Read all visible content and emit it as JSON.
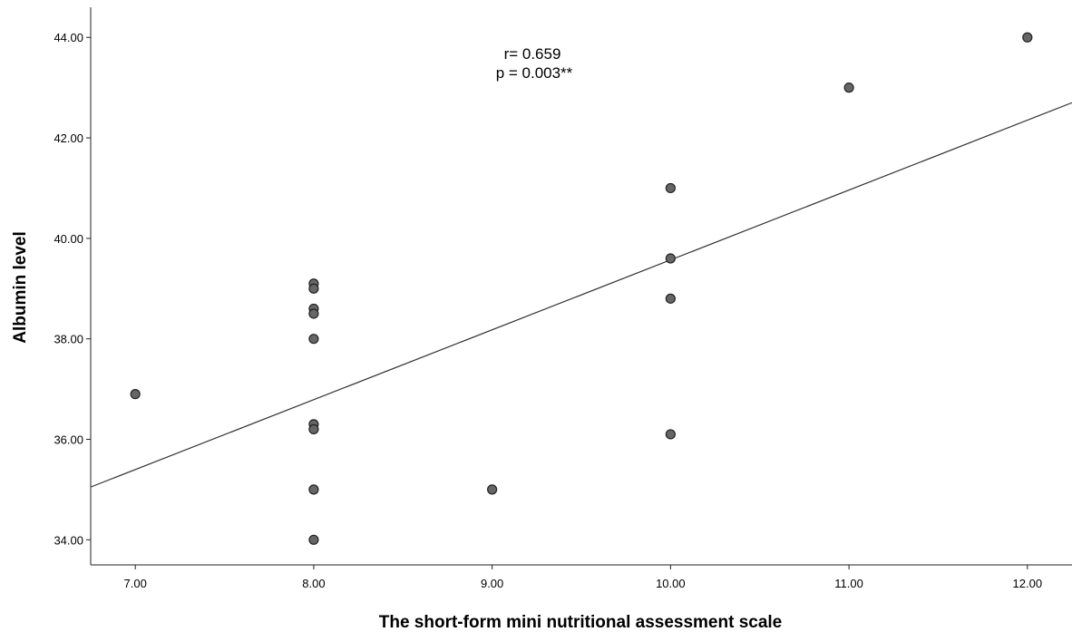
{
  "chart_data": {
    "type": "scatter",
    "title": "",
    "xlabel": "The short-form mini nutritional assessment scale",
    "ylabel": "Albumin level",
    "xlim": [
      6.75,
      12.25
    ],
    "ylim": [
      33.5,
      44.6
    ],
    "x_ticks": [
      7,
      8,
      9,
      10,
      11,
      12
    ],
    "x_tick_labels": [
      "7.00",
      "8.00",
      "9.00",
      "10.00",
      "11.00",
      "12.00"
    ],
    "y_ticks": [
      34,
      36,
      38,
      40,
      42,
      44
    ],
    "y_tick_labels": [
      "34.00",
      "36.00",
      "38.00",
      "40.00",
      "42.00",
      "44.00"
    ],
    "grid": false,
    "points": [
      {
        "x": 7,
        "y": 36.9
      },
      {
        "x": 8,
        "y": 39.1
      },
      {
        "x": 8,
        "y": 39.0
      },
      {
        "x": 8,
        "y": 38.6
      },
      {
        "x": 8,
        "y": 38.5
      },
      {
        "x": 8,
        "y": 38.0
      },
      {
        "x": 8,
        "y": 36.3
      },
      {
        "x": 8,
        "y": 36.2
      },
      {
        "x": 8,
        "y": 35.0
      },
      {
        "x": 8,
        "y": 34.0
      },
      {
        "x": 9,
        "y": 35.0
      },
      {
        "x": 10,
        "y": 41.0
      },
      {
        "x": 10,
        "y": 39.6
      },
      {
        "x": 10,
        "y": 38.8
      },
      {
        "x": 10,
        "y": 36.1
      },
      {
        "x": 11,
        "y": 43.0
      },
      {
        "x": 12,
        "y": 44.0
      }
    ],
    "fit_line": {
      "x1": 6.75,
      "y1": 35.05,
      "x2": 12.25,
      "y2": 42.7
    },
    "annotations": [
      "r= 0.659",
      "p = 0.003**"
    ],
    "colors": {
      "point_fill": "#666666",
      "point_stroke": "#222222",
      "line": "#333333",
      "axis": "#222222"
    }
  }
}
